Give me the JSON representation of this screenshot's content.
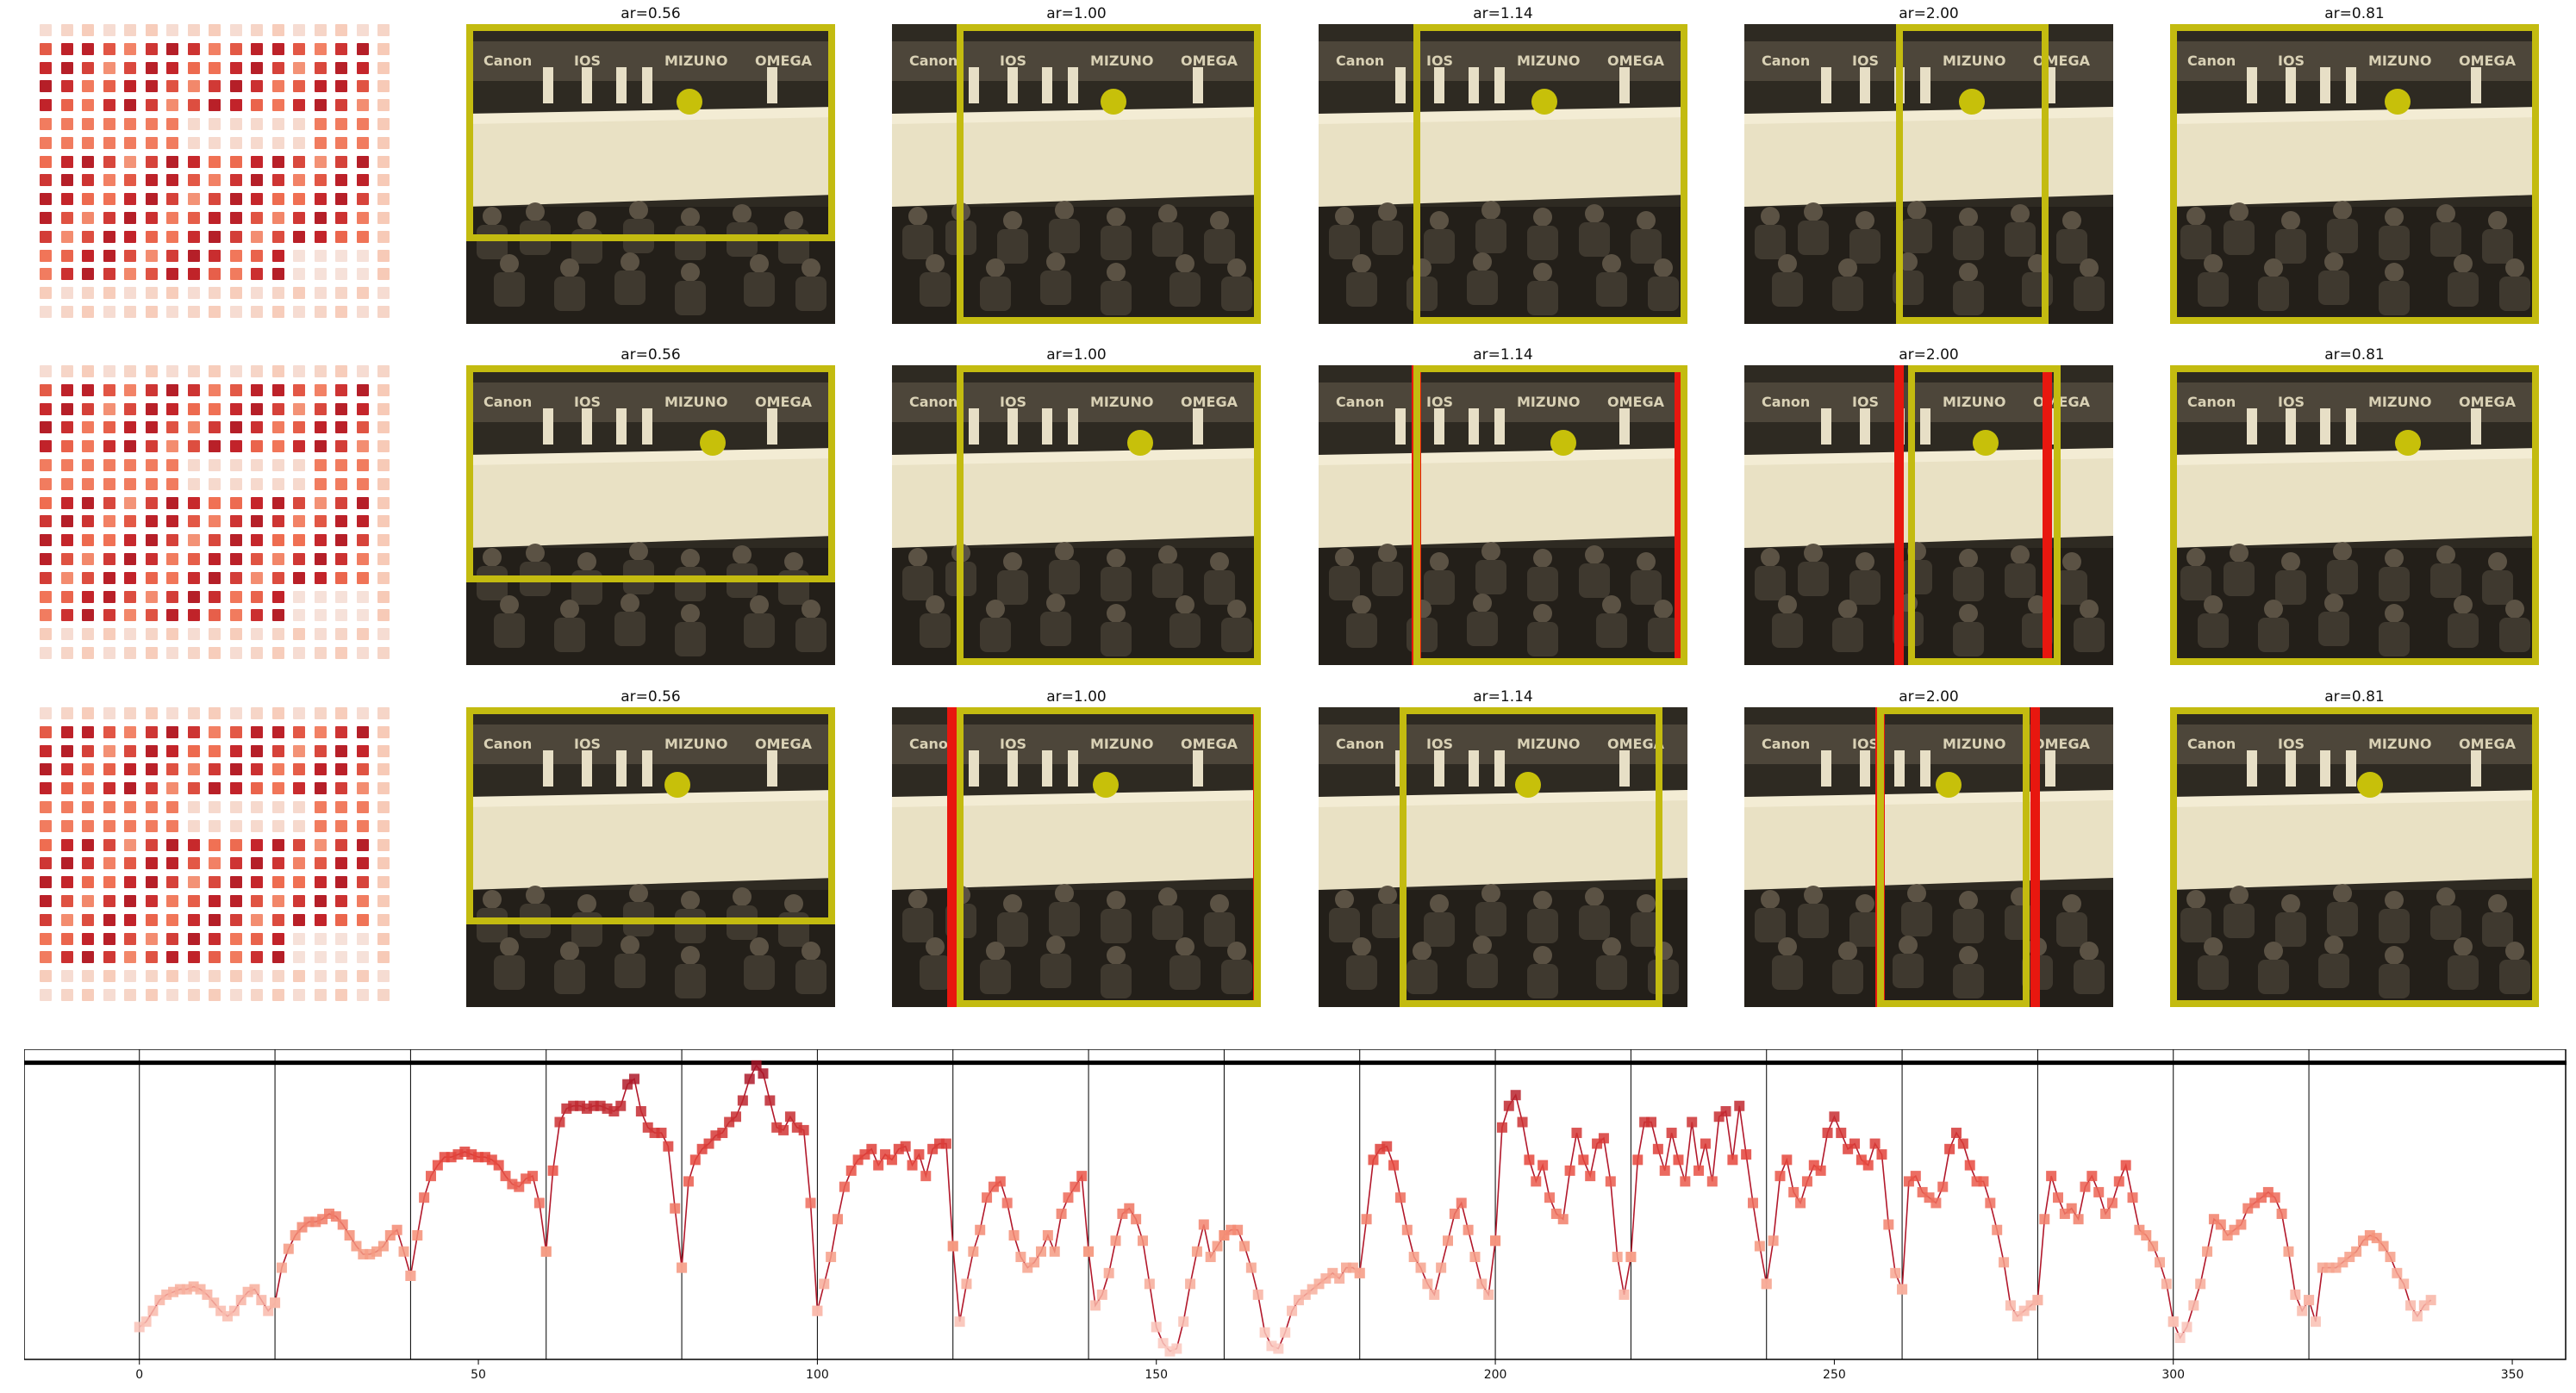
{
  "panels": {
    "columns": 5,
    "rows": [
      {
        "titles": [
          "ar=0.56",
          "ar=1.00",
          "ar=1.14",
          "ar=2.00",
          "ar=0.81"
        ]
      },
      {
        "titles": [
          "ar=0.56",
          "ar=1.00",
          "ar=1.14",
          "ar=2.00",
          "ar=0.81"
        ]
      },
      {
        "titles": [
          "ar=0.56",
          "ar=1.00",
          "ar=1.14",
          "ar=2.00",
          "ar=0.81"
        ]
      }
    ],
    "scene_text": [
      "Canon",
      "IOS",
      "MIZUNO",
      "OMEGA"
    ],
    "colors": {
      "crop_box": "#c3bb10",
      "alt_box": "#e8170f",
      "saliency_dot": "#c7c00a"
    }
  },
  "chart_data": {
    "type": "line",
    "title": "",
    "xlabel": "",
    "ylabel": "",
    "xlim": [
      -17,
      358
    ],
    "ylim": [
      -0.4,
      5.35
    ],
    "xticks": [
      0,
      50,
      100,
      150,
      200,
      250,
      300,
      350
    ],
    "yticks": [
      0,
      1,
      2,
      3,
      4,
      5
    ],
    "hline": 5.1,
    "vlines": [
      0,
      20,
      40,
      60,
      80,
      100,
      120,
      140,
      160,
      180,
      200,
      220,
      240,
      260,
      280,
      300,
      320
    ],
    "grid": false,
    "marker": "square",
    "line_color": "#b2182b",
    "series": [
      {
        "segment": 0,
        "x": [
          0,
          1,
          2,
          3,
          4,
          5,
          6,
          7,
          8,
          9,
          10,
          11,
          12,
          13,
          14,
          15,
          16,
          17,
          18,
          19,
          20
        ],
        "values": [
          0.2,
          0.3,
          0.5,
          0.7,
          0.8,
          0.85,
          0.9,
          0.9,
          0.95,
          0.9,
          0.8,
          0.65,
          0.5,
          0.4,
          0.5,
          0.7,
          0.85,
          0.9,
          0.7,
          0.5,
          0.65
        ]
      },
      {
        "segment": 1,
        "x": [
          20,
          21,
          22,
          23,
          24,
          25,
          26,
          27,
          28,
          29,
          30,
          31,
          32,
          33,
          34,
          35,
          36,
          37,
          38,
          39,
          40
        ],
        "values": [
          0.65,
          1.3,
          1.65,
          1.9,
          2.05,
          2.15,
          2.15,
          2.2,
          2.3,
          2.25,
          2.1,
          1.9,
          1.7,
          1.55,
          1.55,
          1.6,
          1.7,
          1.9,
          2.0,
          1.6,
          1.15
        ]
      },
      {
        "segment": 2,
        "x": [
          40,
          41,
          42,
          43,
          44,
          45,
          46,
          47,
          48,
          49,
          50,
          51,
          52,
          53,
          54,
          55,
          56,
          57,
          58,
          59,
          60
        ],
        "values": [
          1.15,
          1.9,
          2.6,
          3.0,
          3.2,
          3.35,
          3.35,
          3.4,
          3.45,
          3.4,
          3.35,
          3.35,
          3.3,
          3.2,
          3.0,
          2.85,
          2.8,
          2.95,
          3.0,
          2.5,
          1.6
        ]
      },
      {
        "segment": 3,
        "x": [
          60,
          61,
          62,
          63,
          64,
          65,
          66,
          67,
          68,
          69,
          70,
          71,
          72,
          73,
          74,
          75,
          76,
          77,
          78,
          79,
          80
        ],
        "values": [
          1.6,
          3.1,
          4.0,
          4.25,
          4.3,
          4.3,
          4.25,
          4.3,
          4.3,
          4.25,
          4.2,
          4.3,
          4.7,
          4.8,
          4.2,
          3.9,
          3.8,
          3.8,
          3.55,
          2.4,
          1.3
        ]
      },
      {
        "segment": 4,
        "x": [
          80,
          81,
          82,
          83,
          84,
          85,
          86,
          87,
          88,
          89,
          90,
          91,
          92,
          93,
          94,
          95,
          96,
          97,
          98,
          99,
          100
        ],
        "values": [
          1.3,
          2.9,
          3.3,
          3.5,
          3.6,
          3.75,
          3.8,
          4.0,
          4.1,
          4.4,
          4.8,
          5.05,
          4.9,
          4.4,
          3.9,
          3.85,
          4.1,
          3.9,
          3.85,
          2.5,
          0.5
        ]
      },
      {
        "segment": 5,
        "x": [
          100,
          101,
          102,
          103,
          104,
          105,
          106,
          107,
          108,
          109,
          110,
          111,
          112,
          113,
          114,
          115,
          116,
          117,
          118,
          119,
          120
        ],
        "values": [
          0.5,
          1.0,
          1.5,
          2.2,
          2.8,
          3.1,
          3.3,
          3.4,
          3.5,
          3.2,
          3.4,
          3.3,
          3.5,
          3.55,
          3.2,
          3.4,
          3.0,
          3.5,
          3.6,
          3.6,
          1.7
        ]
      },
      {
        "segment": 6,
        "x": [
          120,
          121,
          122,
          123,
          124,
          125,
          126,
          127,
          128,
          129,
          130,
          131,
          132,
          133,
          134,
          135,
          136,
          137,
          138,
          139,
          140
        ],
        "values": [
          1.7,
          0.3,
          1.0,
          1.6,
          2.0,
          2.6,
          2.8,
          2.9,
          2.5,
          1.9,
          1.5,
          1.3,
          1.4,
          1.6,
          1.9,
          1.6,
          2.3,
          2.6,
          2.8,
          3.0,
          1.6
        ]
      },
      {
        "segment": 7,
        "x": [
          140,
          141,
          142,
          143,
          144,
          145,
          146,
          147,
          148,
          149,
          150,
          151,
          152,
          153,
          154,
          155,
          156,
          157,
          158,
          159,
          160
        ],
        "values": [
          1.6,
          0.6,
          0.8,
          1.2,
          1.8,
          2.3,
          2.4,
          2.2,
          1.8,
          1.0,
          0.2,
          -0.1,
          -0.25,
          -0.2,
          0.3,
          1.0,
          1.6,
          2.1,
          1.5,
          1.7,
          1.9
        ]
      },
      {
        "segment": 8,
        "x": [
          160,
          161,
          162,
          163,
          164,
          165,
          166,
          167,
          168,
          169,
          170,
          171,
          172,
          173,
          174,
          175,
          176,
          177,
          178,
          179,
          180
        ],
        "values": [
          1.9,
          2.0,
          2.0,
          1.7,
          1.3,
          0.8,
          0.1,
          -0.15,
          -0.2,
          0.1,
          0.5,
          0.7,
          0.8,
          0.9,
          1.0,
          1.1,
          1.2,
          1.1,
          1.3,
          1.3,
          1.2
        ]
      },
      {
        "segment": 9,
        "x": [
          180,
          181,
          182,
          183,
          184,
          185,
          186,
          187,
          188,
          189,
          190,
          191,
          192,
          193,
          194,
          195,
          196,
          197,
          198,
          199,
          200
        ],
        "values": [
          1.2,
          2.2,
          3.3,
          3.5,
          3.55,
          3.2,
          2.6,
          2.0,
          1.5,
          1.3,
          1.0,
          0.8,
          1.3,
          1.8,
          2.3,
          2.5,
          2.0,
          1.5,
          1.0,
          0.8,
          1.8
        ]
      },
      {
        "segment": 10,
        "x": [
          200,
          201,
          202,
          203,
          204,
          205,
          206,
          207,
          208,
          209,
          210,
          211,
          212,
          213,
          214,
          215,
          216,
          217,
          218,
          219,
          220
        ],
        "values": [
          1.8,
          3.9,
          4.3,
          4.5,
          4.0,
          3.3,
          2.9,
          3.2,
          2.6,
          2.3,
          2.2,
          3.1,
          3.8,
          3.3,
          3.0,
          3.6,
          3.7,
          2.9,
          1.5,
          0.8,
          1.5
        ]
      },
      {
        "segment": 11,
        "x": [
          220,
          221,
          222,
          223,
          224,
          225,
          226,
          227,
          228,
          229,
          230,
          231,
          232,
          233,
          234,
          235,
          236,
          237,
          238,
          239,
          240
        ],
        "values": [
          1.5,
          3.3,
          4.0,
          4.0,
          3.5,
          3.1,
          3.8,
          3.3,
          2.9,
          4.0,
          3.1,
          3.6,
          2.9,
          4.1,
          4.2,
          3.3,
          4.3,
          3.4,
          2.5,
          1.7,
          1.0
        ]
      },
      {
        "segment": 12,
        "x": [
          240,
          241,
          242,
          243,
          244,
          245,
          246,
          247,
          248,
          249,
          250,
          251,
          252,
          253,
          254,
          255,
          256,
          257,
          258,
          259,
          260
        ],
        "values": [
          1.0,
          1.8,
          3.0,
          3.3,
          2.7,
          2.5,
          2.9,
          3.2,
          3.1,
          3.8,
          4.1,
          3.8,
          3.5,
          3.6,
          3.3,
          3.2,
          3.6,
          3.4,
          2.1,
          1.2,
          0.9
        ]
      },
      {
        "segment": 13,
        "x": [
          260,
          261,
          262,
          263,
          264,
          265,
          266,
          267,
          268,
          269,
          270,
          271,
          272,
          273,
          274,
          275,
          276,
          277,
          278,
          279,
          280
        ],
        "values": [
          0.9,
          2.9,
          3.0,
          2.7,
          2.6,
          2.5,
          2.8,
          3.5,
          3.8,
          3.6,
          3.2,
          2.9,
          2.9,
          2.5,
          2.0,
          1.4,
          0.6,
          0.4,
          0.5,
          0.6,
          0.7
        ]
      },
      {
        "segment": 14,
        "x": [
          280,
          281,
          282,
          283,
          284,
          285,
          286,
          287,
          288,
          289,
          290,
          291,
          292,
          293,
          294,
          295,
          296,
          297,
          298,
          299,
          300
        ],
        "values": [
          0.7,
          2.2,
          3.0,
          2.6,
          2.3,
          2.4,
          2.2,
          2.8,
          3.0,
          2.7,
          2.3,
          2.5,
          2.9,
          3.2,
          2.6,
          2.0,
          1.9,
          1.7,
          1.4,
          1.0,
          0.3
        ]
      },
      {
        "segment": 15,
        "x": [
          300,
          301,
          302,
          303,
          304,
          305,
          306,
          307,
          308,
          309,
          310,
          311,
          312,
          313,
          314,
          315,
          316,
          317,
          318,
          319,
          320
        ],
        "values": [
          0.3,
          0.0,
          0.2,
          0.6,
          1.0,
          1.6,
          2.2,
          2.1,
          1.9,
          2.0,
          2.1,
          2.4,
          2.5,
          2.6,
          2.7,
          2.6,
          2.3,
          1.6,
          0.8,
          0.5,
          0.7
        ]
      },
      {
        "segment": 16,
        "x": [
          320,
          321,
          322,
          323,
          324,
          325,
          326,
          327,
          328,
          329,
          330,
          331,
          332,
          333,
          334,
          335,
          336,
          337,
          338
        ],
        "values": [
          0.7,
          0.3,
          1.3,
          1.3,
          1.3,
          1.4,
          1.5,
          1.6,
          1.8,
          1.9,
          1.85,
          1.7,
          1.5,
          1.2,
          1.0,
          0.6,
          0.4,
          0.6,
          0.7
        ]
      }
    ]
  }
}
